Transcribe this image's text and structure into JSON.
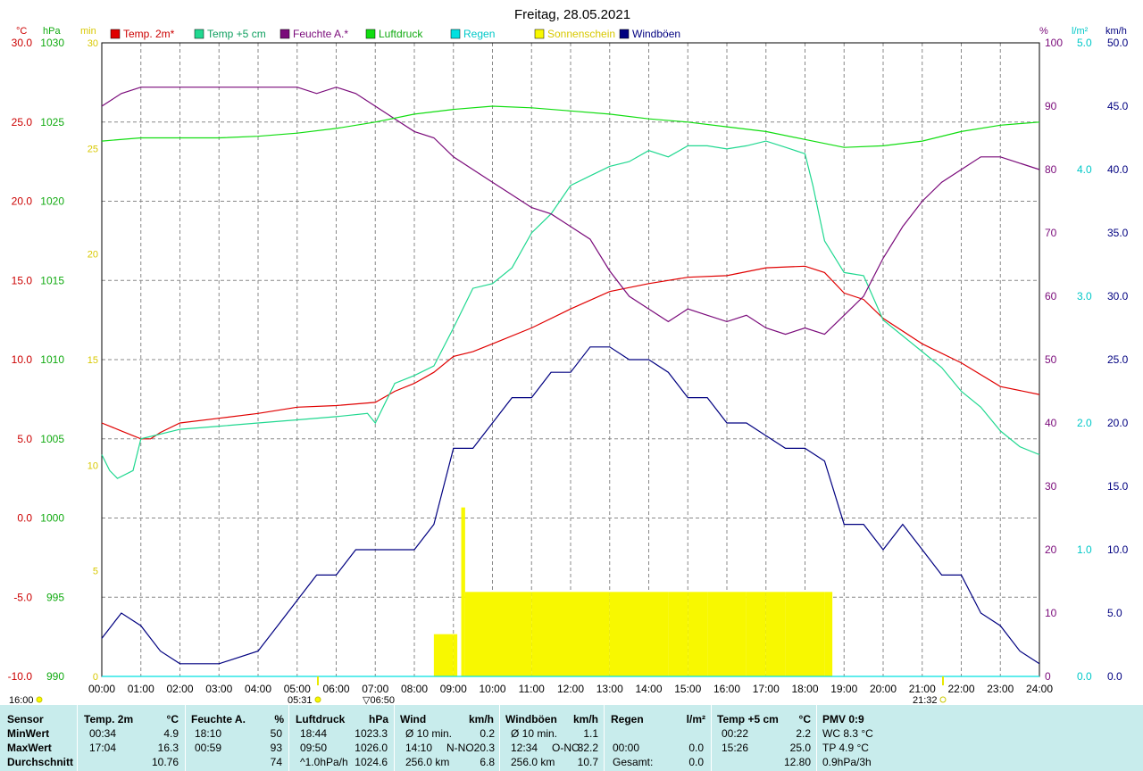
{
  "title": "Freitag, 28.05.2021",
  "colors": {
    "temp2m": "#e00000",
    "temp5cm": "#20d890",
    "humidity": "#7a0a7a",
    "pressure": "#10dd10",
    "rain": "#00e0e0",
    "sunshine": "#f8f800",
    "gusts": "#000080"
  },
  "chart_data": {
    "type": "line",
    "x_unit": "hours",
    "x_range": [
      0,
      24
    ],
    "x_ticks": [
      "00:00",
      "01:00",
      "02:00",
      "03:00",
      "04:00",
      "05:00",
      "06:00",
      "07:00",
      "08:00",
      "09:00",
      "10:00",
      "11:00",
      "12:00",
      "13:00",
      "14:00",
      "15:00",
      "16:00",
      "17:00",
      "18:00",
      "19:00",
      "20:00",
      "21:00",
      "22:00",
      "23:00",
      "24:00"
    ],
    "axes": {
      "temp": {
        "unit": "°C",
        "range": [
          -10,
          30
        ],
        "ticks": [
          "30.0",
          "25.0",
          "20.0",
          "15.0",
          "10.0",
          "5.0",
          "0.0",
          "-5.0",
          "-10.0"
        ]
      },
      "pressure": {
        "unit": "hPa",
        "range": [
          990,
          1030
        ],
        "ticks": [
          "1030",
          "1025",
          "1020",
          "1015",
          "1010",
          "1005",
          "1000",
          "995",
          "990"
        ]
      },
      "sun_minutes": {
        "unit": "min",
        "range": [
          0,
          30
        ],
        "ticks": [
          "30",
          "25",
          "20",
          "15",
          "10",
          "5",
          "0"
        ]
      },
      "humidity": {
        "unit": "%",
        "range": [
          0,
          100
        ],
        "ticks": [
          "100",
          "90",
          "80",
          "70",
          "60",
          "50",
          "40",
          "30",
          "20",
          "10",
          "0"
        ]
      },
      "rain": {
        "unit": "l/m²",
        "range": [
          0,
          5
        ],
        "ticks": [
          "5.0",
          "4.0",
          "3.0",
          "2.0",
          "1.0",
          "0.0"
        ]
      },
      "wind": {
        "unit": "km/h",
        "range": [
          0,
          50
        ],
        "ticks": [
          "50.0",
          "45.0",
          "40.0",
          "35.0",
          "30.0",
          "25.0",
          "20.0",
          "15.0",
          "10.0",
          "5.0",
          "0.0"
        ]
      }
    },
    "legend": [
      "Temp. 2m*",
      "Temp +5 cm",
      "Feuchte A.*",
      "Luftdruck",
      "Regen",
      "Sonnenschein",
      "Windböen"
    ],
    "sun_events": {
      "moonrise_label": "16:00",
      "sunrise_label": "05:31",
      "sunrise_alt_label": "06:50",
      "sunset_label": "21:32"
    },
    "series": [
      {
        "name": "Temp. 2m*",
        "axis": "temp",
        "x": [
          0,
          0.5,
          1,
          1.25,
          1.5,
          2,
          3,
          4,
          5,
          6,
          7,
          7.5,
          8,
          8.5,
          9,
          9.5,
          10,
          11,
          12,
          13,
          14,
          15,
          16,
          17,
          18,
          18.5,
          19,
          19.5,
          20,
          21,
          22,
          23,
          24
        ],
        "y": [
          6.0,
          5.5,
          5.0,
          5.0,
          5.4,
          6.0,
          6.3,
          6.6,
          7.0,
          7.1,
          7.3,
          8.0,
          8.5,
          9.2,
          10.2,
          10.5,
          11.0,
          12.0,
          13.2,
          14.3,
          14.8,
          15.2,
          15.3,
          15.8,
          15.9,
          15.5,
          14.2,
          13.8,
          12.6,
          11.0,
          9.8,
          8.3,
          7.8
        ]
      },
      {
        "name": "Temp +5 cm",
        "axis": "temp",
        "x": [
          0,
          0.2,
          0.4,
          0.8,
          1,
          2,
          3,
          4,
          5,
          6,
          6.8,
          7,
          7.5,
          8,
          8.5,
          9,
          9.5,
          10,
          10.5,
          11,
          11.5,
          12,
          12.5,
          13,
          13.5,
          14,
          14.5,
          15,
          15.5,
          16,
          16.5,
          17,
          17.5,
          18,
          18.2,
          18.5,
          19,
          19.5,
          20,
          21,
          21.5,
          22,
          22.5,
          23,
          23.5,
          24
        ],
        "y": [
          4.0,
          3.0,
          2.5,
          3.0,
          5.0,
          5.6,
          5.8,
          6.0,
          6.2,
          6.4,
          6.6,
          6.0,
          8.5,
          9.0,
          9.6,
          12.0,
          14.5,
          14.8,
          15.8,
          18.0,
          19.2,
          21.0,
          21.6,
          22.2,
          22.5,
          23.2,
          22.8,
          23.5,
          23.5,
          23.3,
          23.5,
          23.8,
          23.4,
          23.0,
          21.0,
          17.5,
          15.5,
          15.3,
          12.5,
          10.5,
          9.5,
          8.0,
          7.0,
          5.5,
          4.5,
          4.0
        ]
      },
      {
        "name": "Feuchte A.*",
        "axis": "humidity",
        "x": [
          0,
          0.5,
          1,
          2,
          3,
          4,
          5,
          5.5,
          6,
          6.5,
          7,
          7.5,
          8,
          8.5,
          9,
          9.5,
          10,
          10.5,
          11,
          11.5,
          12,
          12.5,
          13,
          13.5,
          14,
          14.5,
          15,
          15.5,
          16,
          16.5,
          17,
          17.5,
          18,
          18.5,
          19,
          19.5,
          20,
          20.5,
          21,
          21.5,
          22,
          22.5,
          23,
          23.5,
          24
        ],
        "y": [
          90,
          92,
          93,
          93,
          93,
          93,
          93,
          92,
          93,
          92,
          90,
          88,
          86,
          85,
          82,
          80,
          78,
          76,
          74,
          73,
          71,
          69,
          64,
          60,
          58,
          56,
          58,
          57,
          56,
          57,
          55,
          54,
          55,
          54,
          57,
          60,
          66,
          71,
          75,
          78,
          80,
          82,
          82,
          81,
          80
        ]
      },
      {
        "name": "Luftdruck",
        "axis": "pressure",
        "x": [
          0,
          1,
          2,
          3,
          4,
          5,
          6,
          7,
          8,
          9,
          10,
          11,
          12,
          13,
          14,
          15,
          16,
          17,
          18,
          19,
          20,
          21,
          22,
          23,
          24
        ],
        "y": [
          1023.8,
          1024.0,
          1024.0,
          1024.0,
          1024.1,
          1024.3,
          1024.6,
          1025.0,
          1025.5,
          1025.8,
          1026.0,
          1025.9,
          1025.7,
          1025.5,
          1025.2,
          1025.0,
          1024.7,
          1024.4,
          1023.9,
          1023.4,
          1023.5,
          1023.8,
          1024.4,
          1024.8,
          1025.0
        ]
      },
      {
        "name": "Regen",
        "axis": "rain",
        "x": [
          0,
          24
        ],
        "y": [
          0,
          0
        ]
      },
      {
        "name": "Windböen",
        "axis": "wind",
        "x": [
          0,
          0.5,
          1,
          1.5,
          2,
          3,
          4,
          4.5,
          5,
          5.5,
          6,
          6.5,
          7,
          7.5,
          8,
          8.5,
          9,
          9.5,
          10,
          10.5,
          11,
          11.5,
          12,
          12.5,
          13,
          13.5,
          14,
          14.5,
          15,
          15.5,
          16,
          16.5,
          17,
          17.5,
          18,
          18.5,
          19,
          19.5,
          20,
          20.5,
          21,
          21.5,
          22,
          22.5,
          23,
          23.5,
          24
        ],
        "y": [
          3,
          5,
          4,
          2,
          1,
          1,
          2,
          4,
          6,
          8,
          8,
          10,
          10,
          10,
          10,
          12,
          18,
          18,
          20,
          22,
          22,
          24,
          24,
          26,
          26,
          25,
          25,
          24,
          22,
          22,
          20,
          20,
          19,
          18,
          18,
          17,
          12,
          12,
          10,
          12,
          10,
          8,
          8,
          5,
          4,
          2,
          1
        ]
      },
      {
        "name": "Sonnenschein",
        "axis": "sun_minutes",
        "x": [
          8.5,
          9.0,
          9.1,
          9.2,
          9.3,
          10,
          11,
          12,
          13,
          14,
          14.5,
          15,
          15.5,
          16,
          16.5,
          17,
          17.5,
          18,
          18.5,
          18.7
        ],
        "y": [
          2,
          2,
          0,
          8,
          4,
          4,
          4,
          4,
          4,
          4,
          4,
          4,
          4,
          4,
          4,
          4,
          4,
          4,
          4,
          4
        ]
      }
    ]
  },
  "stats": {
    "headers": {
      "sensor": "Sensor",
      "temp2m": "Temp. 2m",
      "temp2m_unit": "°C",
      "hum": "Feuchte A.",
      "hum_unit": "%",
      "press": "Luftdruck",
      "press_unit": "hPa",
      "wind": "Wind",
      "wind_unit": "km/h",
      "gust": "Windböen",
      "gust_unit": "km/h",
      "rain": "Regen",
      "rain_unit": "l/m²",
      "temp5": "Temp +5 cm",
      "temp5_unit": "°C",
      "pmv": "PMV 0:9"
    },
    "rows": [
      {
        "label": "MinWert",
        "t_time": "00:34",
        "t_val": "4.9",
        "h_time": "18:10",
        "h_val": "50",
        "p_time": "18:44",
        "p_val": "1023.3",
        "w_lbl": "Ø 10 min.",
        "w_val": "0.2",
        "g_lbl": "Ø 10 min.",
        "g_val": "1.1",
        "r_time": "",
        "r_val": "",
        "t5_time": "00:22",
        "t5_val": "2.2",
        "pmv": "WC 8.3 °C"
      },
      {
        "label": "MaxWert",
        "t_time": "17:04",
        "t_val": "16.3",
        "h_time": "00:59",
        "h_val": "93",
        "p_time": "09:50",
        "p_val": "1026.0",
        "w_lbl": "14:10",
        "w_dir": "N-NO",
        "w_val": "20.3",
        "g_lbl": "12:34",
        "g_dir": "O-NO",
        "g_val": "32.2",
        "r_time": "00:00",
        "r_val": "0.0",
        "t5_time": "15:26",
        "t5_val": "25.0",
        "pmv": "TP 4.9 °C"
      },
      {
        "label": "Durchschnitt",
        "t_time": "",
        "t_val": "10.76",
        "h_time": "",
        "h_val": "74",
        "p_time": "^1.0hPa/h",
        "p_val": "1024.6",
        "w_lbl": "256.0 km",
        "w_val": "6.8",
        "g_lbl": "256.0 km",
        "g_val": "10.7",
        "r_time": "Gesamt:",
        "r_val": "0.0",
        "t5_time": "",
        "t5_val": "12.80",
        "pmv": "0.9hPa/3h"
      }
    ]
  }
}
